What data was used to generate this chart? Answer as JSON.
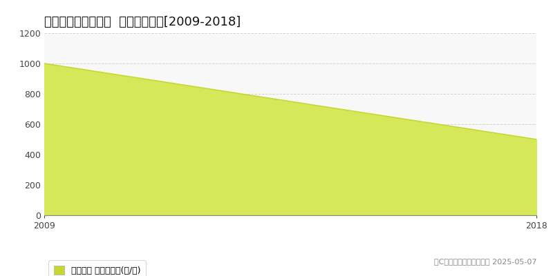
{
  "title": "長野市信州新町越道  農地価格推移[2009-2018]",
  "x_values": [
    2009,
    2018
  ],
  "y_values": [
    1000,
    500
  ],
  "ylim": [
    0,
    1200
  ],
  "xlim": [
    2009,
    2018
  ],
  "yticks": [
    0,
    200,
    400,
    600,
    800,
    1000,
    1200
  ],
  "xticks": [
    2009,
    2018
  ],
  "line_color": "#c8d832",
  "fill_color": "#d4e85a",
  "fill_alpha": 1.0,
  "grid_color": "#cccccc",
  "background_color": "#ffffff",
  "plot_bg_color": "#f8f8f8",
  "legend_label": "農地価格 平均坪単価(円/坪)",
  "legend_square_color": "#c8d832",
  "copyright_text": "（C）土地価格ドットコム 2025-05-07",
  "title_fontsize": 13,
  "axis_fontsize": 9,
  "legend_fontsize": 9
}
